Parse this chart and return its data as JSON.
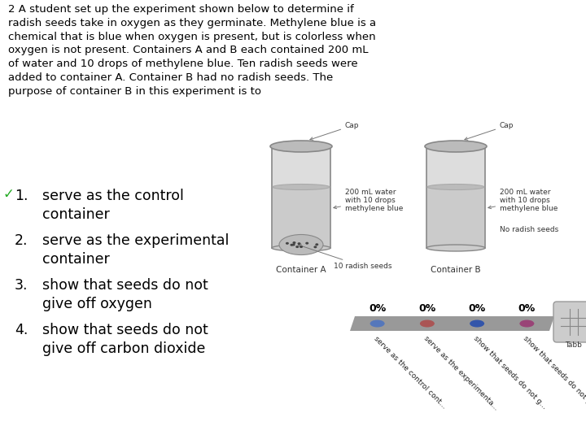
{
  "title_text": "2 A student set up the experiment shown below to determine if\nradish seeds take in oxygen as they germinate. Methylene blue is a\nchemical that is blue when oxygen is present, but is colorless when\noxygen is not present. Containers A and B each contained 200 mL\nof water and 10 drops of methylene blue. Ten radish seeds were\nadded to container A. Container B had no radish seeds. The\npurpose of container B in this experiment is to",
  "options": [
    "serve as the control\ncontainer",
    "serve as the experimental\ncontainer",
    "show that seeds do not\ngive off oxygen",
    "show that seeds do not\ngive off carbon dioxide"
  ],
  "option_numbers": [
    "1.",
    "2.",
    "3.",
    "4."
  ],
  "bg_color": "#ffffff",
  "text_color": "#000000",
  "bar_pct_labels": [
    "0%",
    "0%",
    "0%",
    "0%"
  ],
  "bar_dot_colors": [
    "#5577bb",
    "#aa5555",
    "#3355aa",
    "#994477"
  ],
  "rotated_labels": [
    "serve as the control cont...",
    "serve as the experimenta...",
    "show that seeds do not g...",
    "show that seeds do not g..."
  ],
  "container_a_labels": [
    "Cap",
    "200 mL water\nwith 10 drops\nmethylene blue",
    "10 radish seeds",
    "Container A"
  ],
  "container_b_labels": [
    "Cap",
    "200 mL water\nwith 10 drops\nmethylene blue",
    "No radish seeds",
    "Container B"
  ]
}
